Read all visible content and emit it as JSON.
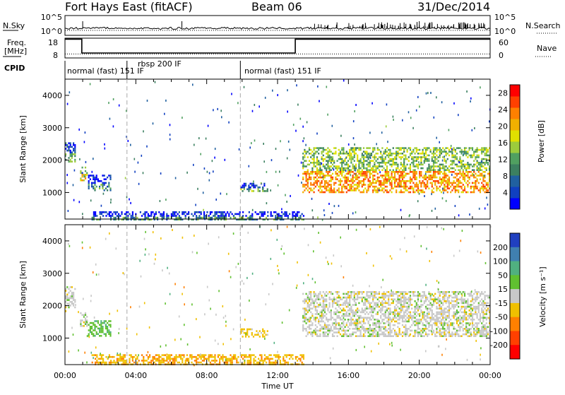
{
  "header": {
    "station": "Fort Hays East (fitACF)",
    "beam": "Beam 06",
    "date": "31/Dec/2014"
  },
  "noise_panel": {
    "left_label": "N.Sky",
    "right_label": "N.Search",
    "left_ticks": [
      "10^5",
      "10^0"
    ],
    "right_ticks": [
      "10^5",
      "10^0"
    ]
  },
  "freq_panel": {
    "left_label_1": "Freq.",
    "left_label_2": "[MHz]",
    "right_label": "Nave",
    "left_ticks": [
      "18",
      "8"
    ],
    "right_ticks": [
      "60",
      "0"
    ],
    "segments": [
      {
        "start_ut": 0.0,
        "end_ut": 0.95,
        "freq_mhz": 17.5
      },
      {
        "start_ut": 0.95,
        "end_ut": 13.0,
        "freq_mhz": 10.5
      },
      {
        "start_ut": 13.0,
        "end_ut": 24.0,
        "freq_mhz": 17.5
      }
    ],
    "nave_level": 12
  },
  "cpid": {
    "label": "CPID",
    "entries": [
      {
        "start_ut": 0.0,
        "text": "normal (fast) 151 IF"
      },
      {
        "start_ut": 3.5,
        "text": "rbsp 200 IF"
      },
      {
        "start_ut": 9.9,
        "text": "normal (fast) 151 IF"
      }
    ],
    "boundaries_ut": [
      3.5,
      9.9
    ]
  },
  "chart_data": [
    {
      "type": "heatmap",
      "panel": "power",
      "ylabel": "Slant Range [km]",
      "xlabel": "Time UT",
      "x_range_ut": [
        0,
        24
      ],
      "ylim_km": [
        180,
        4500
      ],
      "y_ticks": [
        1000,
        2000,
        3000,
        4000
      ],
      "x_ticks": [
        "00:00",
        "04:00",
        "08:00",
        "12:00",
        "16:00",
        "20:00",
        "00:00"
      ],
      "colorbar": {
        "label": "Power [dB]",
        "ticks": [
          4,
          8,
          12,
          16,
          20,
          24,
          28
        ],
        "range": [
          0,
          30
        ],
        "colors": [
          "#0000ff",
          "#1040c0",
          "#2060a0",
          "#3c8060",
          "#50a060",
          "#9ccc3c",
          "#e0e000",
          "#f0b000",
          "#ff8000",
          "#ff4000",
          "#ff0000"
        ]
      },
      "echo_regions": [
        {
          "t_start": 0.0,
          "t_end": 0.55,
          "range_low": 1950,
          "range_high": 2550,
          "power_db": 8
        },
        {
          "t_start": 0.85,
          "t_end": 1.25,
          "range_low": 1350,
          "range_high": 1800,
          "power_db": 14
        },
        {
          "t_start": 1.3,
          "t_end": 2.6,
          "range_low": 1050,
          "range_high": 1550,
          "power_db": 6
        },
        {
          "t_start": 9.9,
          "t_end": 11.4,
          "range_low": 1050,
          "range_high": 1300,
          "power_db": 8
        },
        {
          "t_start": 1.5,
          "t_end": 13.5,
          "range_low": 180,
          "range_high": 420,
          "power_db": 6
        },
        {
          "t_start": 13.4,
          "t_end": 24.0,
          "range_low": 1000,
          "range_high": 2400,
          "power_db": 18
        }
      ]
    },
    {
      "type": "heatmap",
      "panel": "velocity",
      "ylabel": "Slant Range [km]",
      "xlabel": "Time UT",
      "x_range_ut": [
        0,
        24
      ],
      "ylim_km": [
        180,
        4500
      ],
      "y_ticks": [
        1000,
        2000,
        3000,
        4000
      ],
      "x_ticks": [
        "00:00",
        "04:00",
        "08:00",
        "12:00",
        "16:00",
        "20:00",
        "00:00"
      ],
      "colorbar": {
        "label": "Velocity [m s⁻¹]",
        "ticks": [
          "200",
          "100",
          "50",
          "15",
          "-15",
          "-50",
          "-100",
          "-200"
        ],
        "colors": [
          "#2040c0",
          "#4080b0",
          "#50b080",
          "#60c030",
          "#c8c8c8",
          "#f0c000",
          "#ff8000",
          "#ff4000",
          "#ff0000"
        ]
      },
      "echo_regions": [
        {
          "t_start": 0.0,
          "t_end": 0.55,
          "range_low": 1950,
          "range_high": 2600,
          "velocity_ms": 0
        },
        {
          "t_start": 0.85,
          "t_end": 1.25,
          "range_low": 1350,
          "range_high": 1800,
          "velocity_ms": 0
        },
        {
          "t_start": 1.3,
          "t_end": 2.6,
          "range_low": 1050,
          "range_high": 1550,
          "velocity_ms": 40
        },
        {
          "t_start": 9.9,
          "t_end": 11.4,
          "range_low": 1050,
          "range_high": 1300,
          "velocity_ms": -30
        },
        {
          "t_start": 1.5,
          "t_end": 13.5,
          "range_low": 180,
          "range_high": 500,
          "velocity_ms": -40
        },
        {
          "t_start": 13.4,
          "t_end": 24.0,
          "range_low": 1050,
          "range_high": 2450,
          "velocity_ms": 0
        }
      ]
    }
  ]
}
